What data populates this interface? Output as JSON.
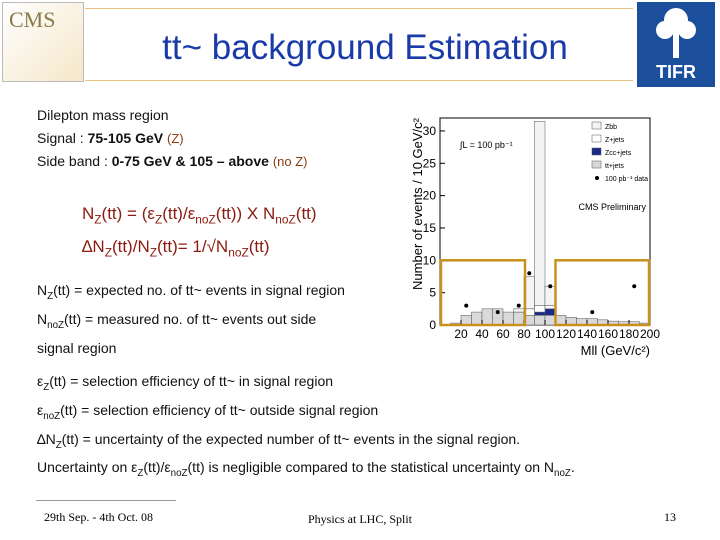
{
  "header": {
    "title": "tt~ background Estimation",
    "logo_left": "CMS",
    "logo_right": "TIFR"
  },
  "body": {
    "lines": [
      [
        "Dilepton mass region"
      ],
      [
        "Signal : ",
        {
          "b": "75-105 GeV"
        },
        " ",
        {
          "note": "(Z)"
        }
      ],
      [
        "Side band : ",
        {
          "b": "0-75 GeV & 105 – above"
        },
        " ",
        {
          "note": "(no Z)"
        }
      ]
    ]
  },
  "formulas": [
    [
      "N",
      {
        "sub": "Z"
      },
      "(tt) = (ε",
      {
        "sub": "Z"
      },
      "(tt)/ε",
      {
        "sub": "noZ"
      },
      "(tt)) X N",
      {
        "sub": "noZ"
      },
      "(tt)"
    ],
    [
      "∆N",
      {
        "sub": "Z"
      },
      "(tt)/N",
      {
        "sub": "Z"
      },
      "(tt)= 1/√N",
      {
        "sub": "noZ"
      },
      "(tt)"
    ]
  ],
  "definitions": [
    [
      "N",
      {
        "sub": "Z"
      },
      "(tt) = expected no. of tt~ events in signal region"
    ],
    [
      "N",
      {
        "sub": "noZ"
      },
      "(tt) = measured no. of tt~ events out side"
    ],
    [
      "signal  region"
    ]
  ],
  "efficiencies": [
    [
      "ε",
      {
        "sub": "Z"
      },
      "(tt) = selection efficiency of tt~ in signal region"
    ],
    [
      "ε",
      {
        "sub": "noZ"
      },
      "(tt) = selection efficiency of tt~ outside signal region"
    ],
    [
      "∆N",
      {
        "sub": "Z"
      },
      "(tt) = uncertainty of the expected number of tt~ events in the signal region."
    ],
    [
      "Uncertainty on ε",
      {
        "sub": "Z"
      },
      "(tt)/ε",
      {
        "sub": "noZ"
      },
      "(tt) is negligible compared to the statistical uncertainty on N",
      {
        "sub": "noZ"
      },
      "."
    ]
  ],
  "plot": {
    "type": "histogram",
    "ylabel": "Number of events / 10 GeV/c²",
    "xlabel": "Mll (GeV/c²)",
    "lumi": "∫L = 100 pb⁻¹",
    "annotation": "CMS Preliminary",
    "bins": [
      0,
      10,
      20,
      30,
      40,
      50,
      60,
      70,
      80,
      90,
      100,
      110,
      120,
      130,
      140,
      150,
      160,
      170,
      180,
      190,
      200
    ],
    "series": [
      {
        "name": "tt+jets",
        "color": "#d9d9d9",
        "values": [
          0,
          0.3,
          1.5,
          2,
          2.5,
          2.5,
          2,
          2,
          1.5,
          1.5,
          1.5,
          1.5,
          1.2,
          1,
          1,
          0.8,
          0.6,
          0.5,
          0.5,
          0.3
        ]
      },
      {
        "name": "Zcc+jets",
        "color": "#1a2a8a",
        "values": [
          0,
          0,
          0,
          0,
          0,
          0,
          0,
          0,
          0,
          0.5,
          1,
          0,
          0,
          0,
          0,
          0,
          0,
          0,
          0,
          0
        ]
      },
      {
        "name": "Z+jets",
        "color": "#ffffff",
        "values": [
          0,
          0,
          0,
          0,
          0,
          0,
          0,
          0,
          1,
          1,
          0.5,
          0,
          0,
          0,
          0,
          0,
          0,
          0,
          0,
          0
        ]
      },
      {
        "name": "Zbb",
        "color": "#f4f4f4",
        "values": [
          0,
          0,
          0,
          0,
          0,
          0,
          0,
          0.5,
          5,
          28.5,
          3,
          0,
          0,
          0,
          0,
          0,
          0,
          0,
          0,
          0
        ]
      }
    ],
    "data": {
      "name": "100 pb⁻¹ data",
      "color": "#000000",
      "values": [
        null,
        null,
        3,
        null,
        null,
        2,
        null,
        3,
        8,
        null,
        6,
        null,
        null,
        null,
        2,
        null,
        null,
        null,
        6,
        null
      ]
    },
    "xlim": [
      0,
      200
    ],
    "ylim": [
      0,
      32
    ],
    "xticks": [
      20,
      40,
      60,
      80,
      100,
      120,
      140,
      160,
      180,
      200
    ],
    "yticks": [
      0,
      5,
      10,
      15,
      20,
      25,
      30
    ]
  },
  "footer": {
    "date": "29th Sep. - 4th Oct. 08",
    "venue": "Physics at LHC, Split",
    "page": "13"
  }
}
